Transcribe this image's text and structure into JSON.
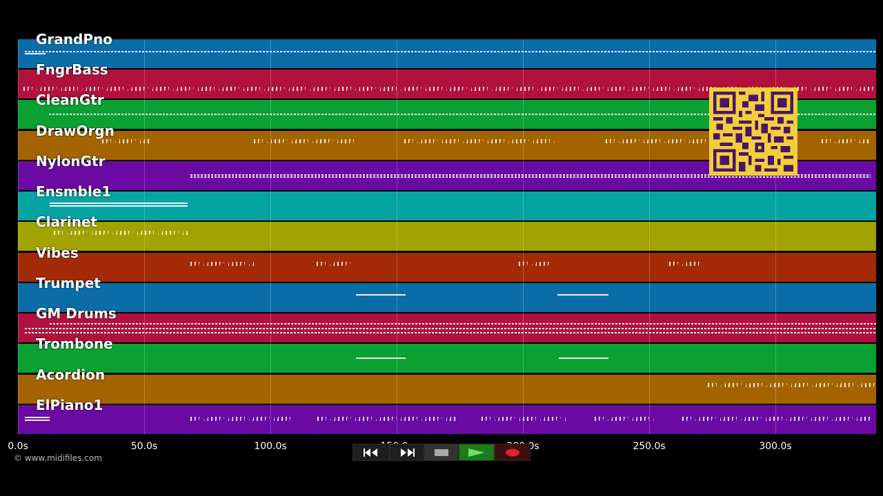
{
  "tracks": [
    {
      "name": "GrandPno",
      "color": "#0b6da8"
    },
    {
      "name": "FngrBass",
      "color": "#b0123d"
    },
    {
      "name": "CleanGtr",
      "color": "#0aa132"
    },
    {
      "name": "DrawOrgn",
      "color": "#a36400"
    },
    {
      "name": "NylonGtr",
      "color": "#6a0aa3"
    },
    {
      "name": "Ensmble1",
      "color": "#06a3a3"
    },
    {
      "name": "Clarinet",
      "color": "#a3a300"
    },
    {
      "name": "Vibes",
      "color": "#a32a06"
    },
    {
      "name": "Trumpet",
      "color": "#0b6da8"
    },
    {
      "name": "GM Drums",
      "color": "#b0123d"
    },
    {
      "name": "Trombone",
      "color": "#0aa132"
    },
    {
      "name": "Acordion",
      "color": "#a36400"
    },
    {
      "name": "ElPiano1",
      "color": "#6a0aa3"
    }
  ],
  "time_axis": {
    "ticks": [
      "0.0s",
      "50.0s",
      "100.0s",
      "150.0s",
      "200.0s",
      "250.0s",
      "300.0s"
    ],
    "tick_seconds": [
      0,
      50,
      100,
      150,
      200,
      250,
      300
    ]
  },
  "copyright": "© www.midifiles.com",
  "transport": [
    {
      "name": "rewind",
      "icon": "rewind-icon"
    },
    {
      "name": "fast-forward",
      "icon": "fast-forward-icon"
    },
    {
      "name": "stop",
      "icon": "stop-icon"
    },
    {
      "name": "play",
      "icon": "play-icon",
      "active": true
    },
    {
      "name": "record",
      "icon": "record-icon"
    }
  ],
  "qr_code": {
    "icon": "qr-code-icon",
    "color": "#f2cf3a"
  }
}
